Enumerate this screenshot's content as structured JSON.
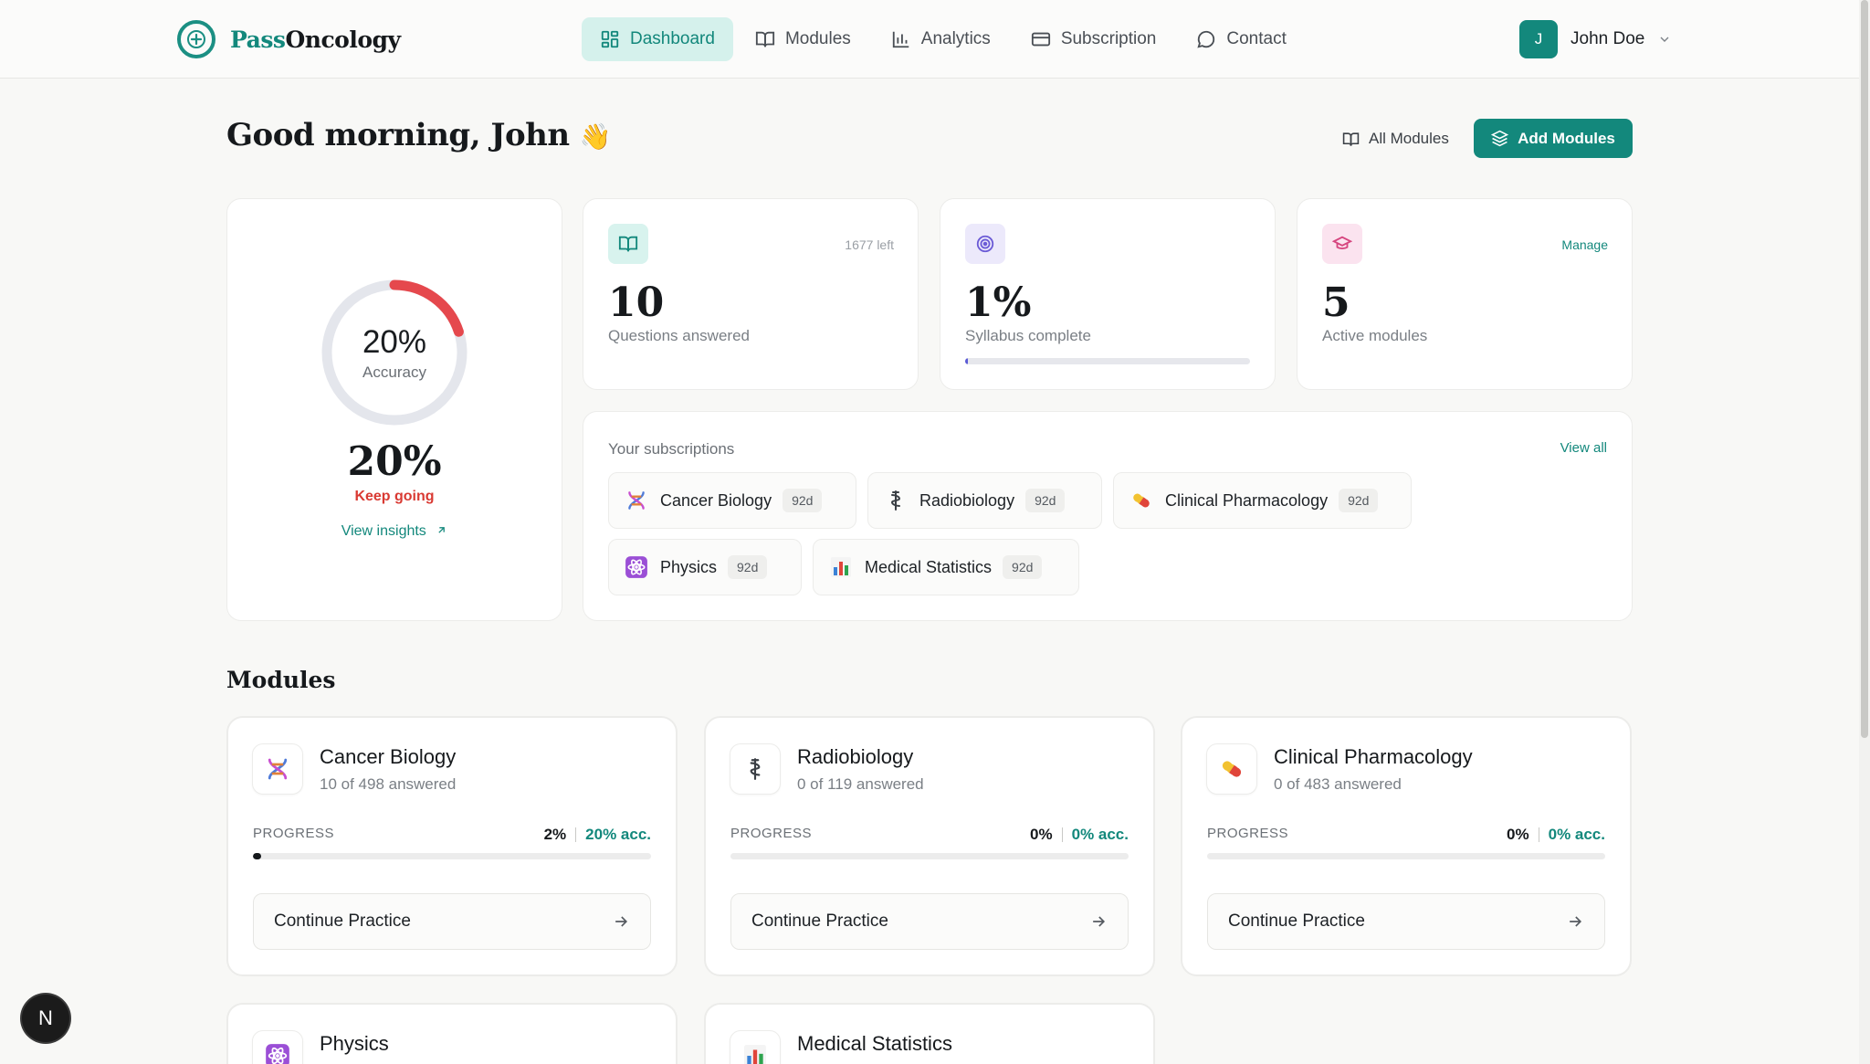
{
  "brand": {
    "part1": "Pass",
    "part2": "Oncology",
    "accent": "#13887c"
  },
  "nav": {
    "items": [
      {
        "label": "Dashboard",
        "icon": "dashboard-grid-icon",
        "active": true
      },
      {
        "label": "Modules",
        "icon": "book-icon",
        "active": false
      },
      {
        "label": "Analytics",
        "icon": "bar-chart-icon",
        "active": false
      },
      {
        "label": "Subscription",
        "icon": "credit-card-icon",
        "active": false
      },
      {
        "label": "Contact",
        "icon": "chat-bubble-icon",
        "active": false
      }
    ]
  },
  "user": {
    "initial": "J",
    "name": "John Doe"
  },
  "header": {
    "greeting": "Good morning, John",
    "greeting_emoji": "👋",
    "all_modules_label": "All Modules",
    "add_modules_label": "Add Modules"
  },
  "accuracy": {
    "ring_value": "20%",
    "ring_label": "Accuracy",
    "ring_fraction": 0.2,
    "big_value": "20%",
    "message": "Keep going",
    "insights_label": "View insights"
  },
  "stats": [
    {
      "value": "10",
      "label": "Questions answered",
      "corner": "1677 left",
      "icon": "book-open-icon",
      "icon_bg": "#d8f3ee",
      "icon_color": "#13887c"
    },
    {
      "value": "1%",
      "label": "Syllabus complete",
      "corner": "",
      "icon": "target-icon",
      "icon_bg": "#ece9fb",
      "icon_color": "#6b5bd6",
      "progress": 0.01
    },
    {
      "value": "5",
      "label": "Active modules",
      "corner": "Manage",
      "icon": "graduation-cap-icon",
      "icon_bg": "#fbe3ef",
      "icon_color": "#d6457f"
    }
  ],
  "subscriptions": {
    "title": "Your subscriptions",
    "view_all_label": "View all",
    "items": [
      {
        "name": "Cancer Biology",
        "badge": "92d",
        "icon": "dna-icon"
      },
      {
        "name": "Radiobiology",
        "badge": "92d",
        "icon": "caduceus-icon"
      },
      {
        "name": "Clinical Pharmacology",
        "badge": "92d",
        "icon": "pill-icon"
      },
      {
        "name": "Physics",
        "badge": "92d",
        "icon": "atom-icon"
      },
      {
        "name": "Medical Statistics",
        "badge": "92d",
        "icon": "bar-chart-emoji-icon"
      }
    ]
  },
  "modules": {
    "title": "Modules",
    "progress_label": "PROGRESS",
    "continue_label": "Continue Practice",
    "items": [
      {
        "name": "Cancer Biology",
        "answered": "10 of 498 answered",
        "progress": "2%",
        "accuracy": "20% acc.",
        "progress_value": 0.02,
        "icon": "dna-icon"
      },
      {
        "name": "Radiobiology",
        "answered": "0 of 119 answered",
        "progress": "0%",
        "accuracy": "0% acc.",
        "progress_value": 0,
        "icon": "caduceus-icon"
      },
      {
        "name": "Clinical Pharmacology",
        "answered": "0 of 483 answered",
        "progress": "0%",
        "accuracy": "0% acc.",
        "progress_value": 0,
        "icon": "pill-icon"
      },
      {
        "name": "Physics",
        "icon": "atom-icon"
      },
      {
        "name": "Medical Statistics",
        "icon": "bar-chart-emoji-icon"
      }
    ]
  },
  "dev_badge": "N"
}
